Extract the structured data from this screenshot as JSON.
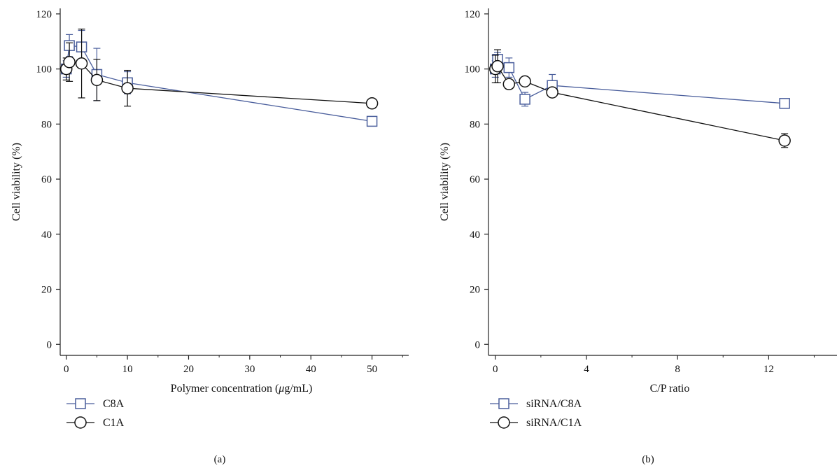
{
  "chart_data": [
    {
      "type": "line",
      "panel_label": "(a)",
      "xlabel_parts": [
        "Polymer concentration (",
        "μ",
        "g/mL)"
      ],
      "ylabel": "Cell viability (%)",
      "xlim": [
        -1,
        56
      ],
      "ylim": [
        -4,
        122
      ],
      "xticks": [
        0,
        10,
        20,
        30,
        40,
        50
      ],
      "xtick_labels": [
        "0",
        "10",
        "20",
        "30",
        "40",
        "50"
      ],
      "yticks": [
        0,
        20,
        40,
        60,
        80,
        100,
        120
      ],
      "ytick_labels": [
        "0",
        "20",
        "40",
        "60",
        "80",
        "100",
        "120"
      ],
      "grid": false,
      "legend_position": "below-left",
      "series": [
        {
          "name": "C8A",
          "marker": "square",
          "color": "#4a5e9c",
          "x": [
            0,
            0.5,
            2.5,
            5,
            10,
            50
          ],
          "y": [
            100,
            108.5,
            108,
            98,
            95,
            81
          ],
          "err": [
            3,
            4,
            6,
            9.5,
            4,
            0
          ]
        },
        {
          "name": "C1A",
          "marker": "circle",
          "color": "#111111",
          "x": [
            0,
            0.5,
            2.5,
            5,
            10,
            50
          ],
          "y": [
            100,
            102.5,
            102,
            96,
            93,
            87.5
          ],
          "err": [
            4,
            7,
            12.5,
            7.5,
            6.5,
            0
          ]
        }
      ]
    },
    {
      "type": "line",
      "panel_label": "(b)",
      "xlabel_parts": [
        "C/P ratio",
        "",
        ""
      ],
      "ylabel": "Cell viability (%)",
      "xlim": [
        -0.3,
        15
      ],
      "ylim": [
        -4,
        122
      ],
      "xticks": [
        0,
        4,
        8,
        12
      ],
      "xtick_labels": [
        "0",
        "4",
        "8",
        "12"
      ],
      "yticks": [
        0,
        20,
        40,
        60,
        80,
        100,
        120
      ],
      "ytick_labels": [
        "0",
        "20",
        "40",
        "60",
        "80",
        "100",
        "120"
      ],
      "grid": false,
      "legend_position": "below-left",
      "series": [
        {
          "name": "siRNA/C8A",
          "marker": "square",
          "color": "#4a5e9c",
          "x": [
            0,
            0.1,
            0.6,
            1.3,
            2.5,
            12.7
          ],
          "y": [
            100,
            103.5,
            100.5,
            89,
            94,
            87.5
          ],
          "err": [
            3,
            2.5,
            3.5,
            2.5,
            4,
            0
          ]
        },
        {
          "name": "siRNA/C1A",
          "marker": "circle",
          "color": "#111111",
          "x": [
            0,
            0.1,
            0.6,
            1.3,
            2.5,
            12.7
          ],
          "y": [
            100,
            101,
            94.5,
            95.5,
            91.5,
            74
          ],
          "err": [
            5,
            6,
            0,
            0,
            0,
            2.5
          ]
        }
      ]
    }
  ]
}
